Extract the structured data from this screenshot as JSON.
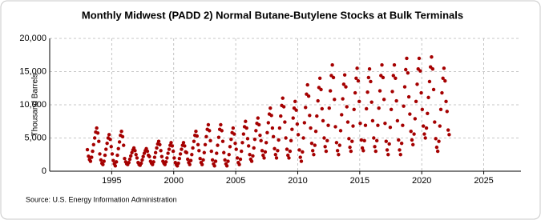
{
  "chart_data": {
    "type": "scatter",
    "title": "Monthly Midwest (PADD 2) Normal Butane-Butylene Stocks at Bulk Terminals",
    "y_label": "Thousand Barrels",
    "source": "Source: U.S. Energy Information Administration",
    "color": "#a50000",
    "grid": true,
    "xlim": [
      1990,
      2028
    ],
    "ylim": [
      0,
      20000
    ],
    "xticks": [
      1995,
      2000,
      2005,
      2010,
      2015,
      2020,
      2025
    ],
    "yticks": [
      0,
      {
        "value": 5000,
        "label": "5,000"
      },
      {
        "value": 10000,
        "label": "10,000"
      },
      {
        "value": 15000,
        "label": "15,000"
      },
      {
        "value": 20000,
        "label": "20,000"
      }
    ],
    "x": [
      1993.04,
      1993.13,
      1993.21,
      1993.29,
      1993.38,
      1993.46,
      1993.54,
      1993.63,
      1993.71,
      1993.79,
      1993.88,
      1993.96,
      1994.04,
      1994.13,
      1994.21,
      1994.29,
      1994.38,
      1994.46,
      1994.54,
      1994.63,
      1994.71,
      1994.79,
      1994.88,
      1994.96,
      1995.04,
      1995.13,
      1995.21,
      1995.29,
      1995.38,
      1995.46,
      1995.54,
      1995.63,
      1995.71,
      1995.79,
      1995.88,
      1995.96,
      1996.04,
      1996.13,
      1996.21,
      1996.29,
      1996.38,
      1996.46,
      1996.54,
      1996.63,
      1996.71,
      1996.79,
      1996.88,
      1996.96,
      1997.04,
      1997.13,
      1997.21,
      1997.29,
      1997.38,
      1997.46,
      1997.54,
      1997.63,
      1997.71,
      1997.79,
      1997.88,
      1997.96,
      1998.04,
      1998.13,
      1998.21,
      1998.29,
      1998.38,
      1998.46,
      1998.54,
      1998.63,
      1998.71,
      1998.79,
      1998.88,
      1998.96,
      1999.04,
      1999.13,
      1999.21,
      1999.29,
      1999.38,
      1999.46,
      1999.54,
      1999.63,
      1999.71,
      1999.79,
      1999.88,
      1999.96,
      2000.04,
      2000.13,
      2000.21,
      2000.29,
      2000.38,
      2000.46,
      2000.54,
      2000.63,
      2000.71,
      2000.79,
      2000.88,
      2000.96,
      2001.04,
      2001.13,
      2001.21,
      2001.29,
      2001.38,
      2001.46,
      2001.54,
      2001.63,
      2001.71,
      2001.79,
      2001.88,
      2001.96,
      2002.04,
      2002.13,
      2002.21,
      2002.29,
      2002.38,
      2002.46,
      2002.54,
      2002.63,
      2002.71,
      2002.79,
      2002.88,
      2002.96,
      2003.04,
      2003.13,
      2003.21,
      2003.29,
      2003.38,
      2003.46,
      2003.54,
      2003.63,
      2003.71,
      2003.79,
      2003.88,
      2003.96,
      2004.04,
      2004.13,
      2004.21,
      2004.29,
      2004.38,
      2004.46,
      2004.54,
      2004.63,
      2004.71,
      2004.79,
      2004.88,
      2004.96,
      2005.04,
      2005.13,
      2005.21,
      2005.29,
      2005.38,
      2005.46,
      2005.54,
      2005.63,
      2005.71,
      2005.79,
      2005.88,
      2005.96,
      2006.04,
      2006.13,
      2006.21,
      2006.29,
      2006.38,
      2006.46,
      2006.54,
      2006.63,
      2006.71,
      2006.79,
      2006.88,
      2006.96,
      2007.04,
      2007.13,
      2007.21,
      2007.29,
      2007.38,
      2007.46,
      2007.54,
      2007.63,
      2007.71,
      2007.79,
      2007.88,
      2007.96,
      2008.04,
      2008.13,
      2008.21,
      2008.29,
      2008.38,
      2008.46,
      2008.54,
      2008.63,
      2008.71,
      2008.79,
      2008.88,
      2008.96,
      2009.04,
      2009.13,
      2009.21,
      2009.29,
      2009.38,
      2009.46,
      2009.54,
      2009.63,
      2009.71,
      2009.79,
      2009.88,
      2009.96,
      2010.04,
      2010.13,
      2010.21,
      2010.29,
      2010.38,
      2010.46,
      2010.54,
      2010.63,
      2010.71,
      2010.79,
      2010.88,
      2010.96,
      2011.04,
      2011.13,
      2011.21,
      2011.29,
      2011.38,
      2011.46,
      2011.54,
      2011.63,
      2011.71,
      2011.79,
      2011.88,
      2011.96,
      2012.04,
      2012.13,
      2012.21,
      2012.29,
      2012.38,
      2012.46,
      2012.54,
      2012.63,
      2012.71,
      2012.79,
      2012.88,
      2012.96,
      2013.04,
      2013.13,
      2013.21,
      2013.29,
      2013.38,
      2013.46,
      2013.54,
      2013.63,
      2013.71,
      2013.79,
      2013.88,
      2013.96,
      2014.04,
      2014.13,
      2014.21,
      2014.29,
      2014.38,
      2014.46,
      2014.54,
      2014.63,
      2014.71,
      2014.79,
      2014.88,
      2014.96,
      2015.04,
      2015.13,
      2015.21,
      2015.29,
      2015.38,
      2015.46,
      2015.54,
      2015.63,
      2015.71,
      2015.79,
      2015.88,
      2015.96,
      2016.04,
      2016.13,
      2016.21,
      2016.29,
      2016.38,
      2016.46,
      2016.54,
      2016.63,
      2016.71,
      2016.79,
      2016.88,
      2016.96,
      2017.04,
      2017.13,
      2017.21,
      2017.29,
      2017.38,
      2017.46,
      2017.54,
      2017.63,
      2017.71,
      2017.79,
      2017.88,
      2017.96,
      2018.04,
      2018.13,
      2018.21,
      2018.29,
      2018.38,
      2018.46,
      2018.54,
      2018.63,
      2018.71,
      2018.79,
      2018.88,
      2018.96,
      2019.04,
      2019.13,
      2019.21,
      2019.29,
      2019.38,
      2019.46,
      2019.54,
      2019.63,
      2019.71,
      2019.79,
      2019.88,
      2019.96,
      2020.04,
      2020.13,
      2020.21,
      2020.29,
      2020.38,
      2020.46,
      2020.54,
      2020.63,
      2020.71,
      2020.79,
      2020.88,
      2020.96,
      2021.04,
      2021.13,
      2021.21,
      2021.29,
      2021.38,
      2021.46,
      2021.54,
      2021.63,
      2021.71,
      2021.79,
      2021.88,
      2021.96,
      2022.04,
      2022.13,
      2022.21
    ],
    "values": [
      3250,
      2250,
      1750,
      1500,
      2100,
      3000,
      4000,
      5000,
      5900,
      6500,
      5750,
      4500,
      2600,
      1700,
      1200,
      1000,
      1500,
      2400,
      3300,
      4200,
      5000,
      5500,
      4800,
      3700,
      2600,
      1600,
      1100,
      800,
      1400,
      2400,
      3400,
      4400,
      5400,
      6000,
      5200,
      3900,
      1900,
      1400,
      1100,
      1000,
      1300,
      1800,
      2300,
      2800,
      3200,
      3500,
      3100,
      2500,
      2000,
      1300,
      1000,
      900,
      1200,
      1700,
      2200,
      2700,
      3100,
      3400,
      3000,
      2400,
      2200,
      1500,
      1200,
      1000,
      1400,
      2100,
      2800,
      3500,
      4100,
      4500,
      4000,
      3100,
      2200,
      1500,
      1200,
      1000,
      1400,
      2000,
      2700,
      3300,
      3900,
      4300,
      3800,
      3000,
      2000,
      1300,
      1000,
      800,
      1200,
      1900,
      2600,
      3300,
      3900,
      4300,
      3800,
      2900,
      2800,
      1800,
      1300,
      1000,
      1600,
      2500,
      3500,
      4500,
      5400,
      6000,
      5300,
      4000,
      3100,
      1900,
      1300,
      1000,
      1700,
      2800,
      4000,
      5200,
      6300,
      7000,
      6100,
      4600,
      3000,
      1700,
      1100,
      800,
      1500,
      2700,
      3900,
      5100,
      6300,
      7000,
      6100,
      4500,
      2800,
      1700,
      1100,
      800,
      1500,
      2500,
      3700,
      4800,
      5800,
      6500,
      5600,
      4200,
      3300,
      2000,
      1300,
      1000,
      1800,
      3000,
      4300,
      5600,
      6700,
      7500,
      6500,
      4900,
      3800,
      2500,
      1800,
      1500,
      2300,
      3500,
      4800,
      6100,
      7200,
      8000,
      7000,
      5400,
      4600,
      3100,
      2400,
      2000,
      2900,
      4300,
      5800,
      7300,
      8600,
      9500,
      8400,
      6500,
      5200,
      3400,
      2500,
      2000,
      3100,
      4700,
      6500,
      8300,
      9900,
      11000,
      9700,
      7400,
      5000,
      3300,
      2400,
      2000,
      3000,
      4600,
      6300,
      8000,
      9500,
      10500,
      9200,
      7100,
      5500,
      3200,
      2100,
      1500,
      2900,
      5000,
      7300,
      9600,
      11600,
      13000,
      11300,
      8400,
      6500,
      4200,
      3100,
      2500,
      3900,
      6000,
      8300,
      10600,
      12600,
      14000,
      12300,
      9400,
      7600,
      5000,
      3700,
      3000,
      4600,
      6900,
      9500,
      12100,
      14400,
      16000,
      14100,
      10800,
      6700,
      4300,
      3100,
      2500,
      3900,
      6100,
      8500,
      10900,
      13100,
      14500,
      12700,
      9700,
      7400,
      4900,
      3600,
      3000,
      4500,
      6800,
      9300,
      11800,
      14000,
      15500,
      13600,
      10500,
      7200,
      4700,
      3500,
      3100,
      4600,
      6900,
      9400,
      11900,
      14100,
      15400,
      13500,
      10400,
      7600,
      5000,
      3700,
      3000,
      4600,
      6900,
      9500,
      12100,
      14400,
      16000,
      14100,
      10800,
      7200,
      4500,
      3200,
      2500,
      4100,
      6600,
      9300,
      12000,
      14400,
      16000,
      14000,
      10600,
      7600,
      4700,
      3200,
      2500,
      4200,
      6900,
      9800,
      12700,
      15300,
      17000,
      14800,
      11200,
      8600,
      6000,
      4700,
      4000,
      5600,
      7900,
      10500,
      13100,
      15400,
      17000,
      15100,
      11800,
      9300,
      6800,
      5600,
      5000,
      6500,
      8700,
      11100,
      13500,
      15700,
      17200,
      15400,
      12300,
      7400,
      4900,
      3600,
      3000,
      4500,
      6800,
      9300,
      11800,
      14000,
      15500,
      13600,
      10500,
      9000,
      6200,
      5500
    ]
  }
}
